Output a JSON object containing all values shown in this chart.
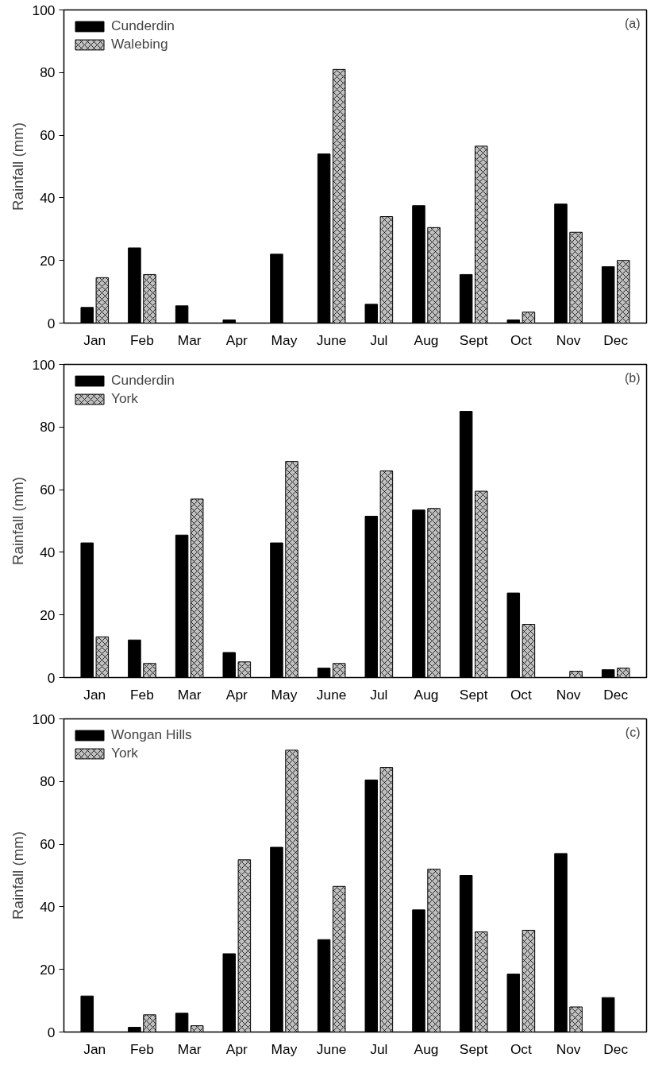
{
  "chart_data": [
    {
      "type": "bar",
      "ylabel": "Rainfall (mm)",
      "categories": [
        "Jan",
        "Feb",
        "Mar",
        "Apr",
        "May",
        "June",
        "Jul",
        "Aug",
        "Sept",
        "Oct",
        "Nov",
        "Dec"
      ],
      "series": [
        {
          "name": "Cunderdin",
          "color": "#000000",
          "values": [
            5,
            24,
            5.5,
            1,
            22,
            54,
            6,
            37.5,
            15.5,
            1,
            38,
            18
          ]
        },
        {
          "name": "Walebing",
          "color": "#c0c0c0",
          "values": [
            14.5,
            15.5,
            null,
            null,
            null,
            81,
            34,
            30.5,
            56.5,
            3.5,
            29,
            20
          ]
        }
      ],
      "ylim": [
        0,
        100
      ],
      "yticks": [
        0,
        20,
        40,
        60,
        80,
        100
      ],
      "grid": false,
      "legend": "top left",
      "annotations": [
        "(a)"
      ]
    },
    {
      "type": "bar",
      "ylabel": "Rainfall (mm)",
      "categories": [
        "Jan",
        "Feb",
        "Mar",
        "Apr",
        "May",
        "June",
        "Jul",
        "Aug",
        "Sept",
        "Oct",
        "Nov",
        "Dec"
      ],
      "series": [
        {
          "name": "Cunderdin",
          "color": "#000000",
          "values": [
            43,
            12,
            45.5,
            8,
            43,
            3,
            51.5,
            53.5,
            85,
            27,
            null,
            2.5
          ]
        },
        {
          "name": "York",
          "color": "#c0c0c0",
          "values": [
            13,
            4.5,
            57,
            5,
            69,
            4.5,
            66,
            54,
            59.5,
            17,
            2,
            3
          ]
        }
      ],
      "ylim": [
        0,
        100
      ],
      "yticks": [
        0,
        20,
        40,
        60,
        80,
        100
      ],
      "grid": false,
      "legend": "top left",
      "annotations": [
        "(b)"
      ]
    },
    {
      "type": "bar",
      "ylabel": "Rainfall (mm)",
      "categories": [
        "Jan",
        "Feb",
        "Mar",
        "Apr",
        "May",
        "June",
        "Jul",
        "Aug",
        "Sept",
        "Oct",
        "Nov",
        "Dec"
      ],
      "series": [
        {
          "name": "Wongan Hills",
          "color": "#000000",
          "values": [
            11.5,
            1.5,
            6,
            25,
            59,
            29.5,
            80.5,
            39,
            50,
            18.5,
            57,
            11
          ]
        },
        {
          "name": "York",
          "color": "#c0c0c0",
          "values": [
            null,
            5.5,
            2,
            55,
            90,
            46.5,
            84.5,
            52,
            32,
            32.5,
            8,
            null
          ]
        }
      ],
      "ylim": [
        0,
        100
      ],
      "yticks": [
        0,
        20,
        40,
        60,
        80,
        100
      ],
      "grid": false,
      "legend": "top left",
      "annotations": [
        "(c)"
      ]
    }
  ]
}
